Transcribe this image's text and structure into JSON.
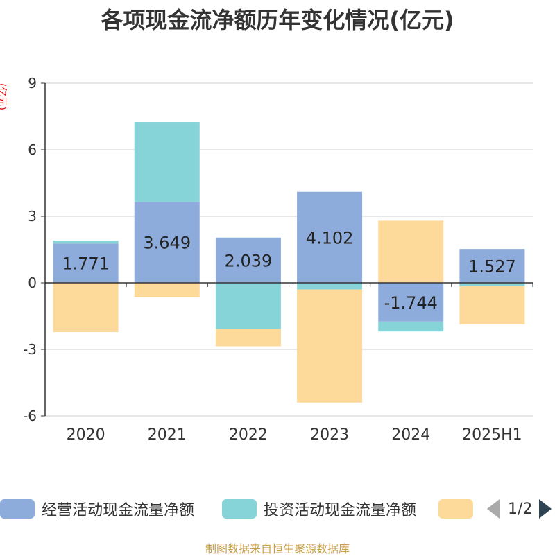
{
  "title": "各项现金流净额历年变化情况(亿元)",
  "unit_label": "(亿元)",
  "source": "制图数据来自恒生聚源数据库",
  "pager": {
    "text": "1/2"
  },
  "colors": {
    "operating": "#8eacdb",
    "investing": "#86d4d8",
    "financing": "#fdd99a"
  },
  "chart_data": {
    "type": "bar",
    "stacked": true,
    "categories": [
      "2020",
      "2021",
      "2022",
      "2023",
      "2024",
      "2025H1"
    ],
    "ylim": [
      -6,
      9
    ],
    "yticks": [
      -6,
      -3,
      0,
      3,
      6,
      9
    ],
    "grid": true,
    "legend_position": "bottom",
    "series": [
      {
        "name": "经营活动现金流量净额",
        "values": [
          1.771,
          3.649,
          2.039,
          4.102,
          -1.744,
          1.527
        ],
        "labels": [
          "1.771",
          "3.649",
          "2.039",
          "4.102",
          "-1.744",
          "1.527"
        ]
      },
      {
        "name": "投资活动现金流量净额",
        "values": [
          0.13,
          3.6,
          -2.08,
          -0.3,
          -0.45,
          -0.15
        ]
      },
      {
        "name": "",
        "values": [
          -2.22,
          -0.65,
          -0.78,
          -5.1,
          2.8,
          -1.72
        ]
      }
    ]
  }
}
